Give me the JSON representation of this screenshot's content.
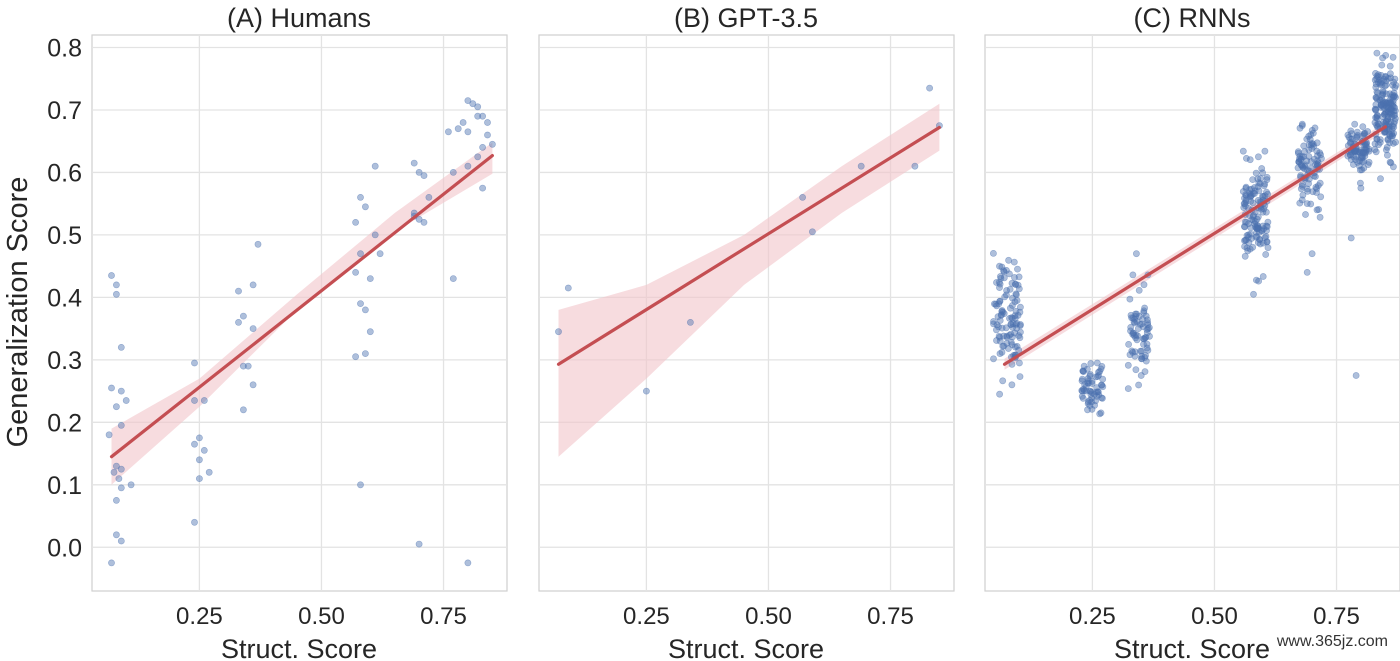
{
  "figure": {
    "ylabel": "Generalization Score",
    "watermark": "www.365jz.com"
  },
  "chart_data": [
    {
      "type": "scatter",
      "title": "(A) Humans",
      "xlabel": "Struct. Score",
      "ylabel": "Generalization Score",
      "xlim": [
        0.03,
        0.88
      ],
      "ylim": [
        -0.07,
        0.82
      ],
      "xticks": [
        "0.25",
        "0.50",
        "0.75"
      ],
      "yticks": [
        "0.0",
        "0.1",
        "0.2",
        "0.3",
        "0.4",
        "0.5",
        "0.6",
        "0.7",
        "0.8"
      ],
      "grid": true,
      "colors": {
        "points": "#4c72b0",
        "line": "#c44e52",
        "band": "#f2c4c9"
      },
      "fit": {
        "x": [
          0.07,
          0.85
        ],
        "y": [
          0.145,
          0.627
        ]
      },
      "band": {
        "x": [
          0.07,
          0.25,
          0.45,
          0.65,
          0.85
        ],
        "upper": [
          0.19,
          0.27,
          0.405,
          0.535,
          0.648
        ],
        "lower": [
          0.1,
          0.225,
          0.38,
          0.505,
          0.598
        ]
      },
      "points": [
        [
          0.07,
          0.435
        ],
        [
          0.08,
          0.405
        ],
        [
          0.08,
          0.42
        ],
        [
          0.09,
          0.32
        ],
        [
          0.09,
          0.25
        ],
        [
          0.1,
          0.235
        ],
        [
          0.08,
          0.225
        ],
        [
          0.07,
          0.255
        ],
        [
          0.065,
          0.18
        ],
        [
          0.08,
          0.13
        ],
        [
          0.09,
          0.125
        ],
        [
          0.085,
          0.11
        ],
        [
          0.09,
          0.095
        ],
        [
          0.11,
          0.1
        ],
        [
          0.08,
          0.075
        ],
        [
          0.08,
          0.02
        ],
        [
          0.09,
          0.01
        ],
        [
          0.07,
          -0.025
        ],
        [
          0.09,
          0.195
        ],
        [
          0.075,
          0.12
        ],
        [
          0.24,
          0.295
        ],
        [
          0.24,
          0.235
        ],
        [
          0.26,
          0.235
        ],
        [
          0.24,
          0.165
        ],
        [
          0.25,
          0.175
        ],
        [
          0.26,
          0.155
        ],
        [
          0.25,
          0.14
        ],
        [
          0.27,
          0.12
        ],
        [
          0.25,
          0.11
        ],
        [
          0.24,
          0.04
        ],
        [
          0.33,
          0.41
        ],
        [
          0.34,
          0.37
        ],
        [
          0.33,
          0.36
        ],
        [
          0.36,
          0.35
        ],
        [
          0.37,
          0.485
        ],
        [
          0.36,
          0.42
        ],
        [
          0.34,
          0.29
        ],
        [
          0.35,
          0.29
        ],
        [
          0.36,
          0.26
        ],
        [
          0.34,
          0.22
        ],
        [
          0.57,
          0.52
        ],
        [
          0.58,
          0.56
        ],
        [
          0.59,
          0.545
        ],
        [
          0.58,
          0.47
        ],
        [
          0.57,
          0.44
        ],
        [
          0.6,
          0.43
        ],
        [
          0.58,
          0.39
        ],
        [
          0.59,
          0.38
        ],
        [
          0.6,
          0.345
        ],
        [
          0.59,
          0.31
        ],
        [
          0.57,
          0.305
        ],
        [
          0.58,
          0.1
        ],
        [
          0.61,
          0.61
        ],
        [
          0.61,
          0.5
        ],
        [
          0.62,
          0.47
        ],
        [
          0.69,
          0.615
        ],
        [
          0.7,
          0.6
        ],
        [
          0.71,
          0.595
        ],
        [
          0.72,
          0.56
        ],
        [
          0.69,
          0.53
        ],
        [
          0.7,
          0.525
        ],
        [
          0.71,
          0.52
        ],
        [
          0.69,
          0.535
        ],
        [
          0.7,
          0.005
        ],
        [
          0.77,
          0.43
        ],
        [
          0.8,
          0.715
        ],
        [
          0.81,
          0.71
        ],
        [
          0.82,
          0.705
        ],
        [
          0.83,
          0.69
        ],
        [
          0.84,
          0.68
        ],
        [
          0.79,
          0.68
        ],
        [
          0.78,
          0.67
        ],
        [
          0.8,
          0.665
        ],
        [
          0.84,
          0.66
        ],
        [
          0.85,
          0.645
        ],
        [
          0.83,
          0.64
        ],
        [
          0.82,
          0.625
        ],
        [
          0.8,
          0.61
        ],
        [
          0.77,
          0.6
        ],
        [
          0.83,
          0.575
        ],
        [
          0.8,
          -0.025
        ],
        [
          0.76,
          0.665
        ],
        [
          0.82,
          0.69
        ]
      ]
    },
    {
      "type": "scatter",
      "title": "(B) GPT-3.5",
      "xlabel": "Struct. Score",
      "xlim": [
        0.03,
        0.88
      ],
      "ylim": [
        -0.07,
        0.82
      ],
      "xticks": [
        "0.25",
        "0.50",
        "0.75"
      ],
      "grid": true,
      "colors": {
        "points": "#4c72b0",
        "line": "#c44e52",
        "band": "#f2c4c9"
      },
      "fit": {
        "x": [
          0.07,
          0.85
        ],
        "y": [
          0.293,
          0.672
        ]
      },
      "band": {
        "x": [
          0.07,
          0.25,
          0.45,
          0.65,
          0.85
        ],
        "upper": [
          0.38,
          0.42,
          0.5,
          0.61,
          0.71
        ],
        "lower": [
          0.145,
          0.27,
          0.42,
          0.535,
          0.635
        ]
      },
      "points": [
        [
          0.07,
          0.345
        ],
        [
          0.09,
          0.415
        ],
        [
          0.25,
          0.25
        ],
        [
          0.34,
          0.36
        ],
        [
          0.57,
          0.56
        ],
        [
          0.59,
          0.505
        ],
        [
          0.69,
          0.61
        ],
        [
          0.8,
          0.61
        ],
        [
          0.83,
          0.735
        ],
        [
          0.85,
          0.675
        ]
      ]
    },
    {
      "type": "scatter",
      "title": "(C) RNNs",
      "xlabel": "Struct. Score",
      "xlim": [
        0.03,
        0.88
      ],
      "ylim": [
        -0.07,
        0.82
      ],
      "xticks": [
        "0.25",
        "0.50",
        "0.75"
      ],
      "grid": true,
      "colors": {
        "points": "#4c72b0",
        "line": "#c44e52",
        "band": "#f2c4c9"
      },
      "fit": {
        "x": [
          0.07,
          0.85
        ],
        "y": [
          0.293,
          0.673
        ]
      },
      "band": {
        "x": [
          0.07,
          0.85
        ],
        "upper": [
          0.302,
          0.68
        ],
        "lower": [
          0.284,
          0.666
        ]
      },
      "clusters": [
        {
          "x": 0.075,
          "xspread": 0.028,
          "y": 0.375,
          "yspread": 0.045,
          "n": 110,
          "outliers": [
            [
              0.06,
              0.245
            ],
            [
              0.085,
              0.26
            ]
          ]
        },
        {
          "x": 0.25,
          "xspread": 0.022,
          "y": 0.255,
          "yspread": 0.018,
          "n": 60,
          "outliers": [
            [
              0.24,
              0.22
            ],
            [
              0.26,
              0.295
            ]
          ]
        },
        {
          "x": 0.345,
          "xspread": 0.022,
          "y": 0.345,
          "yspread": 0.035,
          "n": 70,
          "outliers": [
            [
              0.34,
              0.47
            ],
            [
              0.35,
              0.275
            ]
          ]
        },
        {
          "x": 0.585,
          "xspread": 0.026,
          "y": 0.53,
          "yspread": 0.04,
          "n": 130,
          "outliers": [
            [
              0.58,
              0.405
            ],
            [
              0.59,
              0.625
            ]
          ]
        },
        {
          "x": 0.695,
          "xspread": 0.024,
          "y": 0.605,
          "yspread": 0.03,
          "n": 90,
          "outliers": [
            [
              0.69,
              0.44
            ],
            [
              0.7,
              0.47
            ],
            [
              0.71,
              0.54
            ]
          ]
        },
        {
          "x": 0.795,
          "xspread": 0.022,
          "y": 0.635,
          "yspread": 0.02,
          "n": 80,
          "outliers": [
            [
              0.79,
              0.275
            ],
            [
              0.78,
              0.495
            ],
            [
              0.8,
              0.575
            ]
          ]
        },
        {
          "x": 0.85,
          "xspread": 0.022,
          "y": 0.7,
          "yspread": 0.035,
          "n": 170,
          "outliers": [
            [
              0.84,
              0.59
            ],
            [
              0.86,
              0.77
            ]
          ]
        }
      ]
    }
  ]
}
